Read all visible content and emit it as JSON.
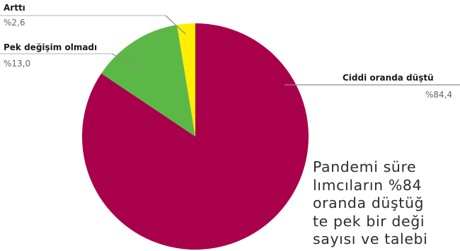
{
  "chart_data": {
    "type": "pie",
    "unit": "%",
    "slices": [
      {
        "label": "Ciddi oranda düştü",
        "value": 84.4,
        "display": "%84,4",
        "color": "#a8004a"
      },
      {
        "label": "Pek değişim olmadı",
        "value": 13.0,
        "display": "%13,0",
        "color": "#5cb846"
      },
      {
        "label": "Arttı",
        "value": 2.6,
        "display": "%2,6",
        "color": "#ffee00"
      }
    ]
  },
  "body_text": {
    "lines": [
      "Pandemi süre",
      "lımcıların %84",
      "oranda düştüğ",
      "te pek bir deği",
      "sayısı ve talebi"
    ]
  }
}
